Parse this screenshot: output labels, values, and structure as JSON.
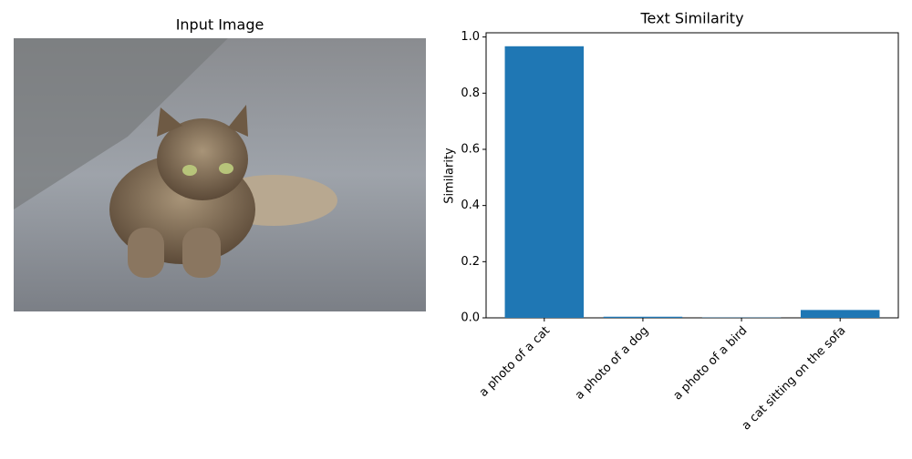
{
  "image_panel": {
    "title": "Input Image"
  },
  "chart_data": {
    "type": "bar",
    "title": "Text Similarity",
    "y_label": "Similarity",
    "categories": [
      "a photo of a cat",
      "a photo of a dog",
      "a photo of a bird",
      "a cat sitting on the sofa"
    ],
    "values": [
      0.967,
      0.004,
      0.001,
      0.028
    ],
    "color": "#1f77b4",
    "ylim": [
      0,
      1.015
    ],
    "yticks": [
      {
        "value": 0,
        "label": "0.0"
      },
      0.2,
      0.4,
      0.6,
      0.8,
      {
        "value": 1,
        "label": "1.0"
      }
    ],
    "grid": false
  }
}
